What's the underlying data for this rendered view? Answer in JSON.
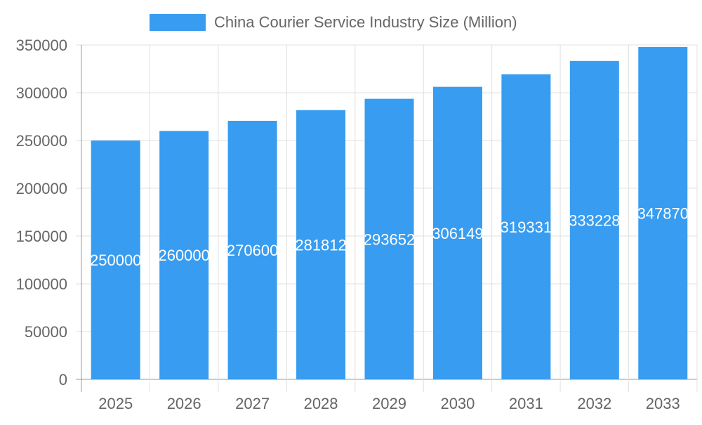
{
  "chart_data": {
    "type": "bar",
    "categories": [
      "2025",
      "2026",
      "2027",
      "2028",
      "2029",
      "2030",
      "2031",
      "2032",
      "2033"
    ],
    "series": [
      {
        "name": "China Courier Service Industry Size (Million)",
        "values": [
          250000,
          260000,
          270600,
          281812,
          293652,
          306149,
          319331,
          333228,
          347870
        ],
        "color": "#389cf0"
      }
    ],
    "ylim": [
      0,
      350000
    ],
    "yticks": [
      0,
      50000,
      100000,
      150000,
      200000,
      250000,
      300000,
      350000
    ],
    "grid": true,
    "legend": "top"
  }
}
